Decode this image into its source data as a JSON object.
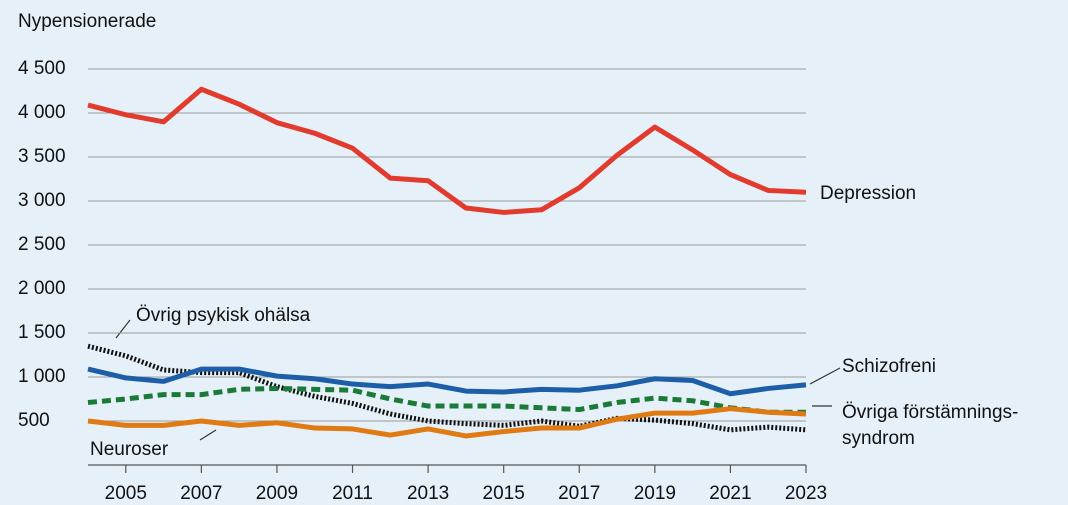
{
  "chart_data": {
    "type": "line",
    "title": "Nypensionerade",
    "x": [
      2004,
      2005,
      2006,
      2007,
      2008,
      2009,
      2010,
      2011,
      2012,
      2013,
      2014,
      2015,
      2016,
      2017,
      2018,
      2019,
      2020,
      2021,
      2022,
      2023
    ],
    "xlim": [
      2004,
      2023
    ],
    "xticks": [
      2005,
      2007,
      2009,
      2011,
      2013,
      2015,
      2017,
      2019,
      2021,
      2023
    ],
    "ylim": [
      0,
      4500
    ],
    "yticks": [
      500,
      {
        "value": 1000,
        "label": "1 000"
      },
      {
        "value": 1500,
        "label": "1 500"
      },
      {
        "value": 2000,
        "label": "2 000"
      },
      {
        "value": 2500,
        "label": "2 500"
      },
      {
        "value": 3000,
        "label": "3 000"
      },
      {
        "value": 3500,
        "label": "3 500"
      },
      {
        "value": 4000,
        "label": "4 000"
      },
      {
        "value": 4500,
        "label": "4 500"
      }
    ],
    "grid": true,
    "series": [
      {
        "name": "Depression",
        "color": "#e23b2e",
        "style": "solid",
        "values": [
          4090,
          3980,
          3900,
          4270,
          4100,
          3890,
          3770,
          3600,
          3260,
          3230,
          2920,
          2870,
          2900,
          3150,
          3520,
          3840,
          3580,
          3300,
          3120,
          3100
        ]
      },
      {
        "name": "Schizofreni",
        "color": "#1c5ea8",
        "style": "solid",
        "values": [
          1090,
          990,
          950,
          1090,
          1090,
          1010,
          980,
          920,
          890,
          920,
          840,
          830,
          860,
          850,
          900,
          980,
          960,
          810,
          870,
          910
        ]
      },
      {
        "name": [
          "Övriga förstämnings-",
          "syndrom"
        ],
        "color": "#1b7a38",
        "style": "dashed",
        "values": [
          710,
          750,
          800,
          800,
          860,
          870,
          860,
          850,
          750,
          670,
          670,
          670,
          650,
          630,
          710,
          760,
          730,
          650,
          600,
          600
        ]
      },
      {
        "name": "Övrig psykisk ohälsa",
        "color": "#111111",
        "style": "dotted",
        "values": [
          1350,
          1240,
          1080,
          1050,
          1050,
          890,
          780,
          700,
          580,
          500,
          470,
          450,
          500,
          440,
          530,
          510,
          470,
          400,
          430,
          400
        ]
      },
      {
        "name": "Neuroser",
        "color": "#e07a12",
        "style": "solid",
        "values": [
          500,
          450,
          450,
          500,
          450,
          480,
          420,
          410,
          340,
          410,
          330,
          380,
          420,
          420,
          520,
          590,
          590,
          640,
          600,
          580
        ]
      }
    ]
  }
}
